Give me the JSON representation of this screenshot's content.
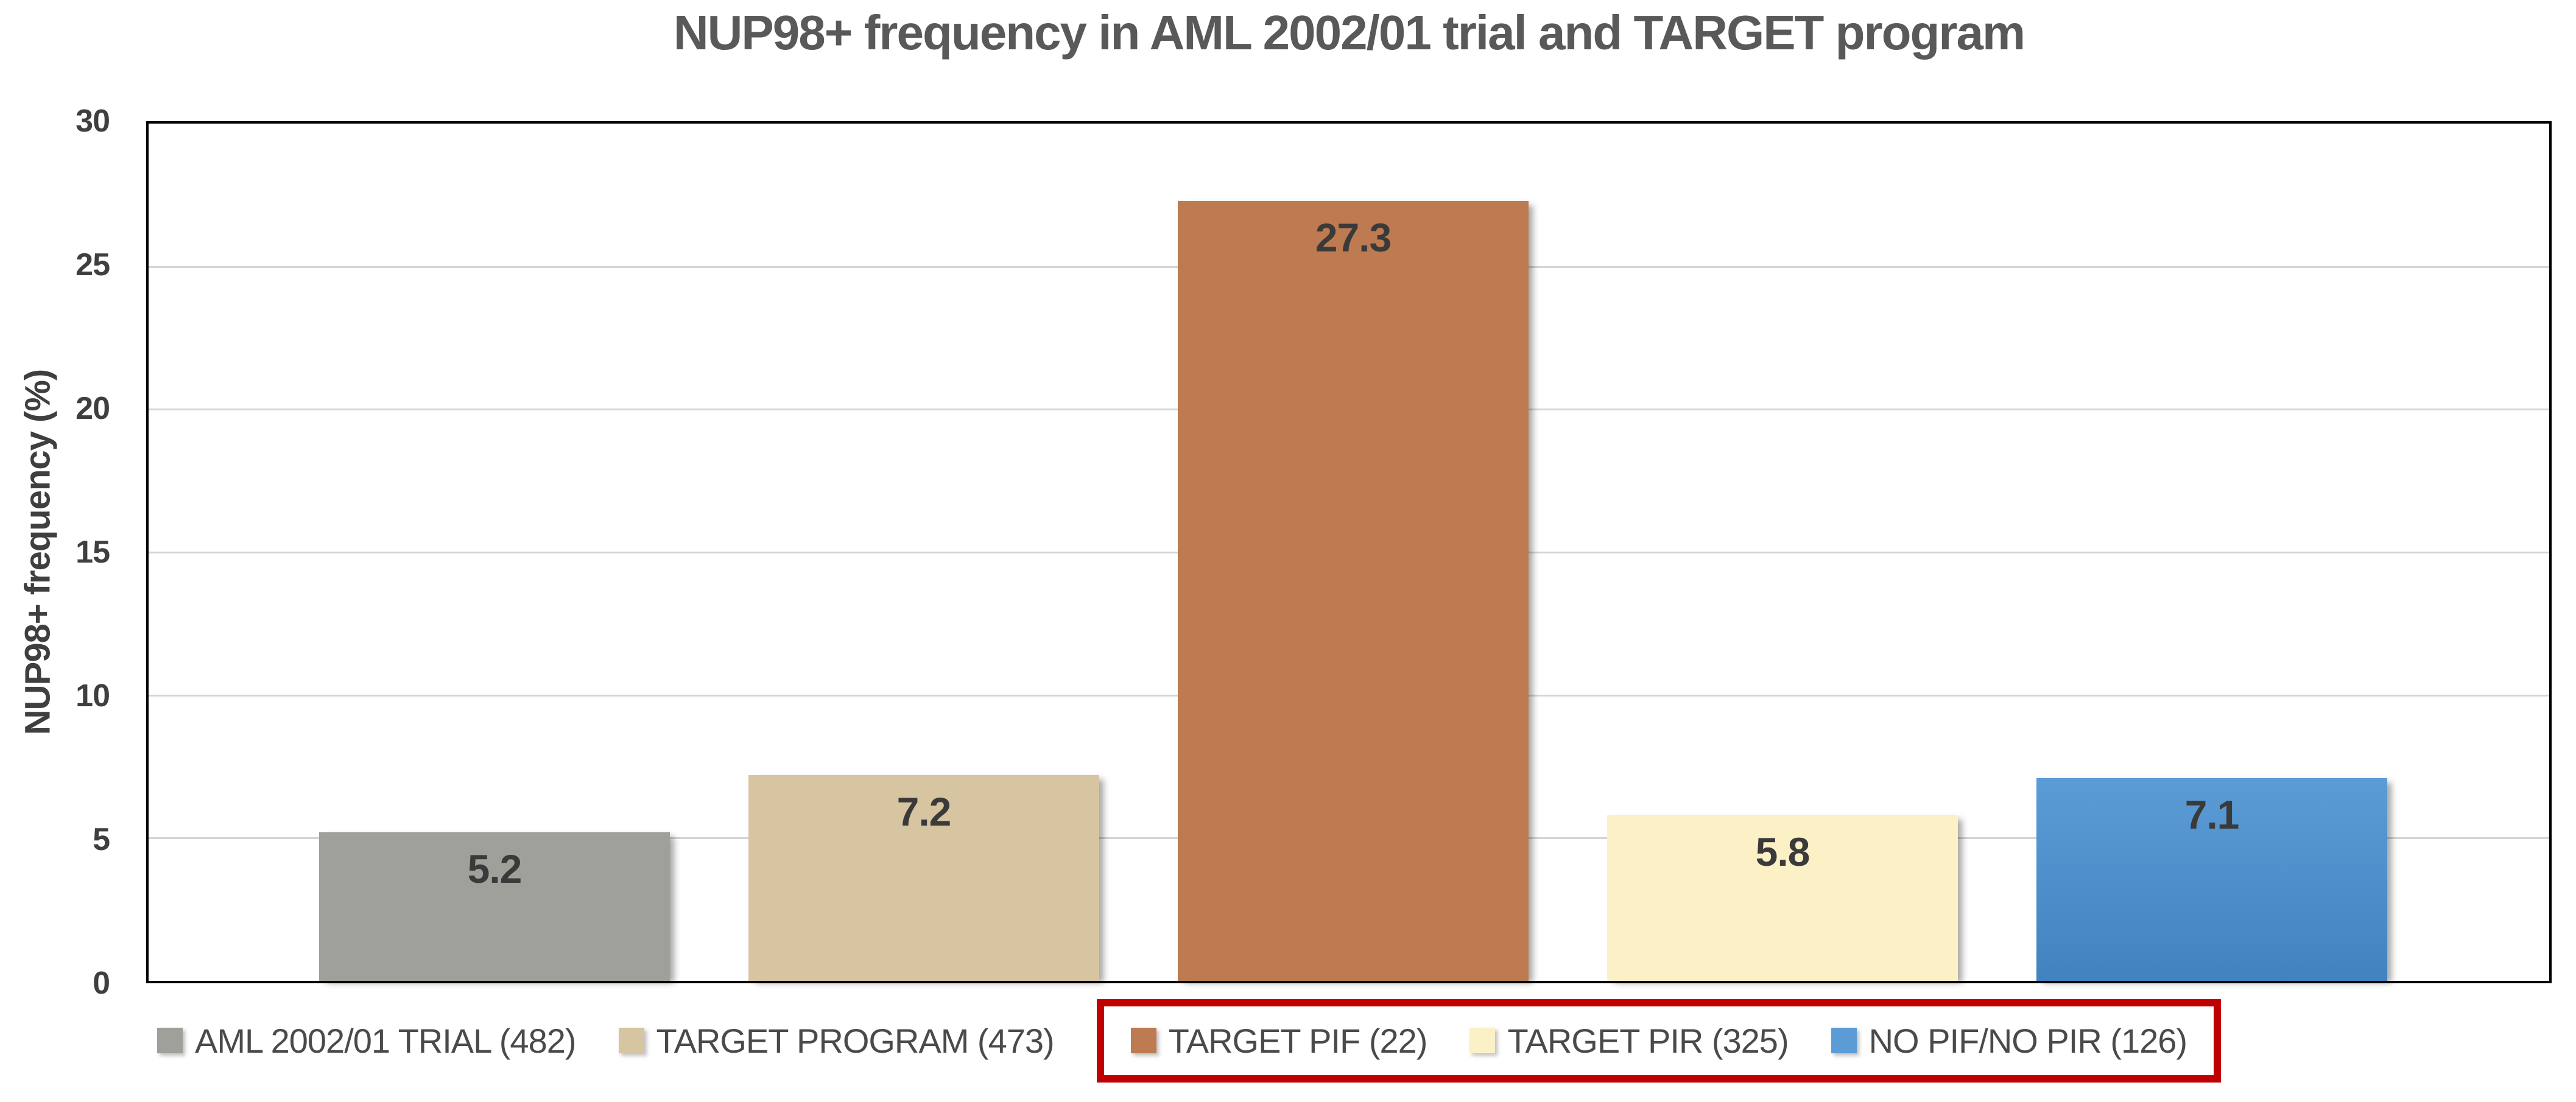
{
  "chart_data": {
    "type": "bar",
    "title": "NUP98+ frequency in AML 2002/01 trial and TARGET program",
    "xlabel": "",
    "ylabel": "NUP98+ frequency (%)",
    "ylim": [
      0,
      30
    ],
    "yticks": [
      0,
      5,
      10,
      15,
      20,
      25,
      30
    ],
    "grid": true,
    "legend_position": "bottom",
    "categories": [
      "AML 2002/01 TRIAL (482)",
      "TARGET PROGRAM (473)",
      "TARGET PIF (22)",
      "TARGET PIR (325)",
      "NO PIF/NO PIR (126)"
    ],
    "values": [
      5.2,
      7.2,
      27.3,
      5.8,
      7.1
    ],
    "value_labels": [
      "5.2",
      "7.2",
      "27.3",
      "5.8",
      "7.1"
    ],
    "bar_colors": [
      {
        "fill": "#A0A09A"
      },
      {
        "fill": "#D7C5A1"
      },
      {
        "fill": "#BE7A51"
      },
      {
        "fill": "#FCF0C6"
      },
      {
        "fill": "#5B9CD6",
        "fill_bottom": "#4183C0"
      }
    ],
    "ui_colors": {
      "axis_border": "#000000",
      "gridline": "#D4D4D4",
      "title_text": "#595959",
      "tick_text": "#3F3F3F",
      "bar_label_text": "#3A3A3A",
      "legend_text": "#4A4A4A",
      "highlight_box": "#C00000"
    }
  },
  "legend": {
    "items": [
      {
        "label": "AML 2002/01 TRIAL (482)",
        "boxed": false
      },
      {
        "label": "TARGET PROGRAM (473)",
        "boxed": false
      },
      {
        "label": "TARGET PIF (22)",
        "boxed": true
      },
      {
        "label": "TARGET PIR (325)",
        "boxed": true
      },
      {
        "label": "NO PIF/NO PIR (126)",
        "boxed": true
      }
    ],
    "box_color": "#C00000"
  }
}
